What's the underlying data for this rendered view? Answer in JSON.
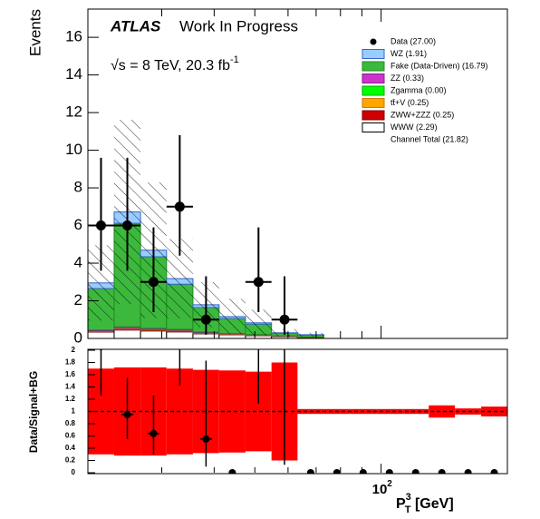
{
  "chart_data": {
    "type": "histogram",
    "experiment": "ATLAS",
    "status": "Work In Progress",
    "energy_label": "√s = 8 TeV, 20.3 fb",
    "energy_label_sup": "-1",
    "y_label": "Events",
    "x_label": "P",
    "x_label_sup": "3",
    "x_label_sub": "T",
    "x_label_unit": " [GeV]",
    "xscale": "log",
    "xlim": [
      20,
      200
    ],
    "bins": [
      20,
      23.1,
      26.7,
      30.8,
      35.6,
      41.1,
      47.5,
      54.8,
      63.2,
      73.0,
      84.3,
      97.4,
      112.5,
      129.9,
      150.0,
      173.2,
      200
    ],
    "xticks": [
      {
        "value": 100,
        "label": "10",
        "exponent": "2"
      }
    ],
    "x_minor_ticks": [
      30,
      40,
      50,
      60,
      70,
      80,
      90
    ],
    "ylim": [
      0,
      17.5
    ],
    "yticks": [
      0,
      2,
      4,
      6,
      8,
      10,
      12,
      14,
      16
    ],
    "series": [
      {
        "name": "WWW (2.29)",
        "color": "#ffffff",
        "edge_color": "#000000",
        "values": [
          0.34,
          0.45,
          0.4,
          0.35,
          0.25,
          0.2,
          0.15,
          0.1,
          0.05,
          0,
          0,
          0,
          0,
          0,
          0,
          0
        ]
      },
      {
        "name": "ZWW+ZZZ (0.25)",
        "color": "#cc0000",
        "edge_color": "#800000",
        "values": [
          0.03,
          0.04,
          0.04,
          0.04,
          0.03,
          0.02,
          0.02,
          0.02,
          0.01,
          0,
          0,
          0,
          0,
          0,
          0,
          0
        ]
      },
      {
        "name": "tt̄+V (0.25)",
        "color": "#ffa500",
        "edge_color": "#cc7a00",
        "values": [
          0.03,
          0.05,
          0.04,
          0.04,
          0.03,
          0.02,
          0.02,
          0.01,
          0.01,
          0,
          0,
          0,
          0,
          0,
          0,
          0
        ]
      },
      {
        "name": "Zgamma (0.00)",
        "color": "#00ff00",
        "edge_color": "#00aa00",
        "values": [
          0,
          0,
          0,
          0,
          0,
          0,
          0,
          0,
          0,
          0,
          0,
          0,
          0,
          0,
          0,
          0
        ]
      },
      {
        "name": "ZZ (0.33)",
        "color": "#cc33cc",
        "edge_color": "#882288",
        "values": [
          0.05,
          0.08,
          0.06,
          0.05,
          0.03,
          0.02,
          0.02,
          0.01,
          0.01,
          0,
          0,
          0,
          0,
          0,
          0,
          0
        ]
      },
      {
        "name": "Fake (Data-Driven)  (16.79)",
        "color": "#3cb93c",
        "edge_color": "#1e8c1e",
        "values": [
          2.2,
          5.5,
          3.8,
          2.4,
          1.3,
          0.8,
          0.55,
          0.14,
          0.1,
          0,
          0,
          0,
          0,
          0,
          0,
          0
        ]
      },
      {
        "name": "WZ (1.91)",
        "color": "#99ccff",
        "edge_color": "#3366cc",
        "values": [
          0.3,
          0.6,
          0.35,
          0.3,
          0.15,
          0.1,
          0.07,
          0.02,
          0.02,
          0,
          0,
          0,
          0,
          0,
          0,
          0
        ]
      }
    ],
    "uncertainty": [
      2.0,
      4.9,
      3.6,
      2.1,
      1.2,
      0.95,
      0.7,
      0.2,
      0.1,
      0,
      0,
      0,
      0,
      0,
      0,
      0
    ],
    "data": {
      "name": "Data (27.00)",
      "color": "#000000",
      "values": [
        6,
        6,
        3,
        7,
        1,
        0,
        3,
        1,
        0,
        0,
        0,
        0,
        0,
        0,
        0,
        0
      ],
      "err_low": [
        2.4,
        2.4,
        1.6,
        2.6,
        0.8,
        0,
        1.6,
        0.8,
        0,
        0,
        0,
        0,
        0,
        0,
        0,
        0
      ],
      "err_high": [
        3.6,
        3.6,
        2.9,
        3.8,
        2.3,
        0,
        2.9,
        2.3,
        0,
        0,
        0,
        0,
        0,
        0,
        0,
        0
      ]
    },
    "total_label": "Channel Total  (21.82)",
    "ratio": {
      "y_label": "Data/Signal+BG",
      "ylim": [
        0,
        2
      ],
      "yticks": [
        0,
        0.2,
        0.4,
        0.6,
        0.8,
        1,
        1.2,
        1.4,
        1.6,
        1.8,
        2
      ],
      "values": [
        2.06,
        0.95,
        0.64,
        2.26,
        0.55,
        0,
        3.33,
        3.33,
        0,
        0,
        0,
        0,
        0,
        0,
        0,
        0
      ],
      "err_low": [
        0.8,
        0.4,
        0.34,
        0.84,
        0.45,
        0,
        2.2,
        3.2,
        0,
        0,
        0,
        0,
        0,
        0,
        0,
        0
      ],
      "err_high": [
        1.2,
        0.6,
        0.62,
        1.2,
        1.28,
        0,
        4.2,
        7.6,
        0,
        0,
        0,
        0,
        0,
        0,
        0,
        0
      ],
      "band": [
        0.7,
        0.72,
        0.72,
        0.7,
        0.68,
        0.67,
        0.65,
        0.8,
        0.04,
        0.04,
        0.04,
        0.04,
        0.04,
        0.1,
        0.05,
        0.08
      ],
      "band_color": "#ff0000",
      "reference": 1
    }
  }
}
